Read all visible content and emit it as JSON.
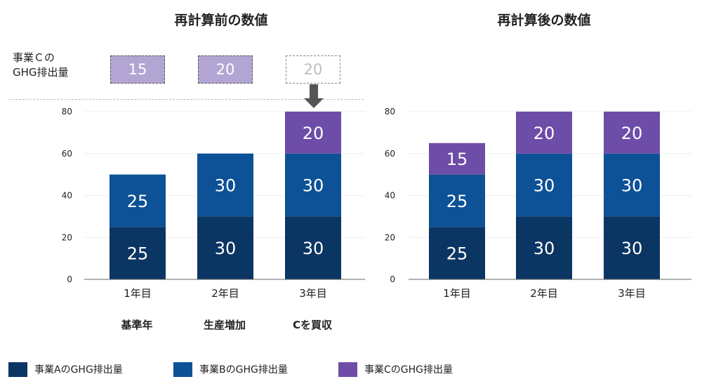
{
  "titles": {
    "left": "再計算前の数値",
    "right": "再計算後の数値"
  },
  "business_c": {
    "label_line1": "事業Ｃの",
    "label_line2": "GHG排出量",
    "values": [
      "15",
      "20",
      "20"
    ]
  },
  "sublabels": [
    "基準年",
    "生産増加",
    "Cを買収"
  ],
  "legend": [
    "事業AのGHG排出量",
    "事業BのGHG排出量",
    "事業CのGHG排出量"
  ],
  "colors": {
    "a": "#0B3563",
    "b": "#0D5197",
    "c": "#6E4DA8",
    "c_light": "#B2A5D3"
  },
  "chart_data": [
    {
      "type": "bar",
      "stacked": true,
      "title": "再計算前の数値",
      "categories": [
        "1年目",
        "2年目",
        "3年目"
      ],
      "series": [
        {
          "name": "事業AのGHG排出量",
          "values": [
            25,
            30,
            30
          ]
        },
        {
          "name": "事業BのGHG排出量",
          "values": [
            25,
            30,
            30
          ]
        },
        {
          "name": "事業CのGHG排出量",
          "values": [
            0,
            0,
            20
          ]
        }
      ],
      "ylim": [
        0,
        80
      ],
      "yticks": [
        0,
        20,
        40,
        60,
        80
      ],
      "grid": true
    },
    {
      "type": "bar",
      "stacked": true,
      "title": "再計算後の数値",
      "categories": [
        "1年目",
        "2年目",
        "3年目"
      ],
      "series": [
        {
          "name": "事業AのGHG排出量",
          "values": [
            25,
            30,
            30
          ]
        },
        {
          "name": "事業BのGHG排出量",
          "values": [
            25,
            30,
            30
          ]
        },
        {
          "name": "事業CのGHG排出量",
          "values": [
            15,
            20,
            20
          ]
        }
      ],
      "ylim": [
        0,
        80
      ],
      "yticks": [
        0,
        20,
        40,
        60,
        80
      ],
      "grid": true
    }
  ]
}
